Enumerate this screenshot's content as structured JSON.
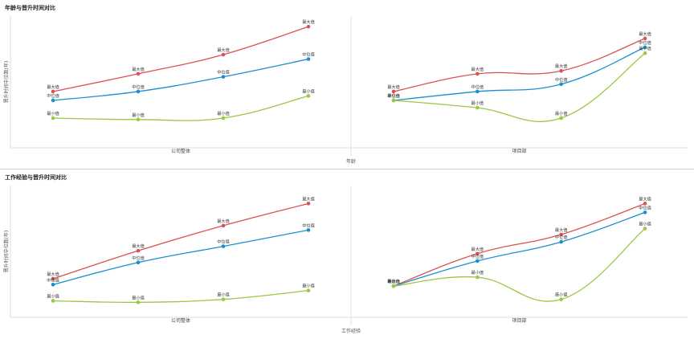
{
  "panels": [
    {
      "title": "年龄与晋升时间对比",
      "x_axis_title": "年龄",
      "y_axis_title": "晋升时间中位数(年)",
      "chart_data": {
        "type": "line",
        "facets": [
          {
            "category": "公司整体",
            "series": [
              {
                "name": "最大值",
                "color": "#d9534f",
                "values": [
                  3.6,
                  4.8,
                  6.1,
                  8.0
                ]
              },
              {
                "name": "中位值",
                "color": "#1a8fce",
                "values": [
                  3.0,
                  3.6,
                  4.6,
                  5.8
                ]
              },
              {
                "name": "最小值",
                "color": "#9ac83f",
                "values": [
                  1.8,
                  1.7,
                  1.8,
                  3.3
                ]
              }
            ]
          },
          {
            "category": "项目部",
            "series": [
              {
                "name": "最大值",
                "color": "#d9534f",
                "values": [
                  3.6,
                  4.8,
                  5.0,
                  7.2
                ]
              },
              {
                "name": "中位值",
                "color": "#1a8fce",
                "values": [
                  3.0,
                  3.6,
                  4.1,
                  6.6
                ]
              },
              {
                "name": "最小值",
                "color": "#9ac83f",
                "values": [
                  3.0,
                  2.5,
                  1.8,
                  6.2
                ]
              }
            ]
          }
        ],
        "ylim": [
          0,
          8.5
        ]
      }
    },
    {
      "title": "工作经验与晋升时间对比",
      "x_axis_title": "工作经验",
      "y_axis_title": "晋升时间中位数(年)",
      "chart_data": {
        "type": "line",
        "facets": [
          {
            "category": "公司整体",
            "series": [
              {
                "name": "最大值",
                "color": "#d9534f",
                "values": [
                  2.4,
                  4.3,
                  6.0,
                  7.5
                ]
              },
              {
                "name": "中位值",
                "color": "#1a8fce",
                "values": [
                  2.0,
                  3.5,
                  4.6,
                  5.7
                ]
              },
              {
                "name": "最小值",
                "color": "#9ac83f",
                "values": [
                  0.9,
                  0.8,
                  1.0,
                  1.6
                ]
              }
            ]
          },
          {
            "category": "项目部",
            "series": [
              {
                "name": "最大值",
                "color": "#d9534f",
                "values": [
                  1.9,
                  4.1,
                  5.4,
                  7.5
                ]
              },
              {
                "name": "中位值",
                "color": "#1a8fce",
                "values": [
                  1.9,
                  3.6,
                  4.9,
                  6.9
                ]
              },
              {
                "name": "最小值",
                "color": "#9ac83f",
                "values": [
                  1.9,
                  2.5,
                  1.0,
                  5.8
                ]
              }
            ]
          }
        ],
        "ylim": [
          0,
          8.5
        ]
      }
    }
  ]
}
